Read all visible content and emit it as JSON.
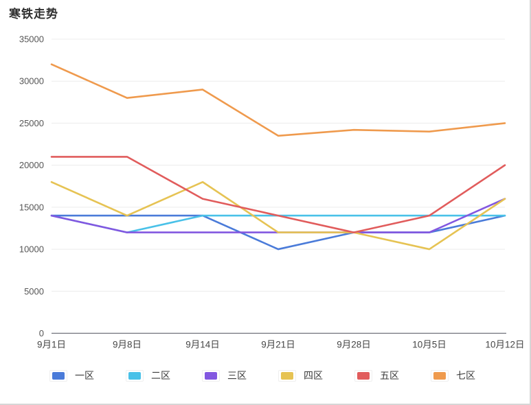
{
  "header": {
    "title": "寒铁走势"
  },
  "chart_data": {
    "type": "line",
    "title": "寒铁走势",
    "categories": [
      "9月1日",
      "9月8日",
      "9月14日",
      "9月21日",
      "9月28日",
      "10月5日",
      "10月12日"
    ],
    "series": [
      {
        "name": "一区",
        "color": "#4a7bd9",
        "values": [
          14000,
          14000,
          14000,
          10000,
          12000,
          12000,
          14000
        ]
      },
      {
        "name": "二区",
        "color": "#49c1e8",
        "values": [
          14000,
          12000,
          14000,
          14000,
          14000,
          14000,
          14000
        ]
      },
      {
        "name": "三区",
        "color": "#8257e0",
        "values": [
          14000,
          12000,
          12000,
          12000,
          12000,
          12000,
          16000
        ]
      },
      {
        "name": "四区",
        "color": "#e6c353",
        "values": [
          18000,
          14000,
          18000,
          12000,
          12000,
          10000,
          16000
        ]
      },
      {
        "name": "五区",
        "color": "#e15c5c",
        "values": [
          21000,
          21000,
          16000,
          14000,
          12000,
          14000,
          20000
        ]
      },
      {
        "name": "七区",
        "color": "#ef9a4d",
        "values": [
          32000,
          28000,
          29000,
          23500,
          24200,
          24000,
          25000
        ]
      }
    ],
    "ylim": [
      0,
      35000
    ],
    "ytick_interval": 5000,
    "ytick_labels": [
      "0",
      "5000",
      "10000",
      "15000",
      "20000",
      "25000",
      "30000",
      "35000"
    ],
    "xlabel": "",
    "ylabel": "",
    "grid": true,
    "legend_position": "bottom",
    "colors": {
      "grid_line": "#ececec",
      "axis_line": "#6e7079",
      "axis_label": "#555555",
      "background": "#ffffff"
    }
  }
}
